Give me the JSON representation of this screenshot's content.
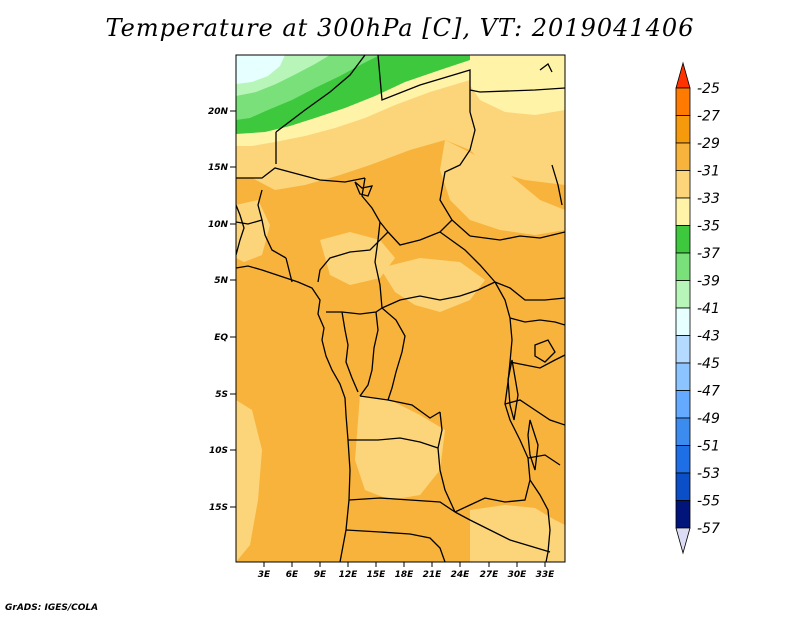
{
  "title": "Temperature at 300hPa [C], VT: 2019041406",
  "footer": "GrADS: IGES/COLA",
  "colors": {
    "-25": "#ff3300",
    "-27": "#ff7a00",
    "-29": "#f59a0c",
    "-31": "#f8b33c",
    "-33": "#fcd57a",
    "-35": "#fff3a8",
    "-37": "#3dc83d",
    "-39": "#7ae07a",
    "-41": "#b8f5b8",
    "-43": "#e6ffff",
    "-45": "#b4daff",
    "-47": "#8cc4ff",
    "-49": "#64aaff",
    "-51": "#3c8cf0",
    "-53": "#1e6ee6",
    "-55": "#0a4ec8",
    "-57": "#00147a",
    "low_extend": "#dcdcf5",
    "border": "#000000"
  },
  "map": {
    "lat_labels": [
      "20N",
      "15N",
      "10N",
      "5N",
      "EQ",
      "5S",
      "10S",
      "15S"
    ],
    "lon_labels": [
      "3E",
      "6E",
      "9E",
      "12E",
      "15E",
      "18E",
      "21E",
      "24E",
      "27E",
      "30E",
      "33E"
    ]
  },
  "colorbar": {
    "labels": [
      "-25",
      "-27",
      "-29",
      "-31",
      "-33",
      "-35",
      "-37",
      "-39",
      "-41",
      "-43",
      "-45",
      "-47",
      "-49",
      "-51",
      "-53",
      "-55",
      "-57"
    ]
  }
}
